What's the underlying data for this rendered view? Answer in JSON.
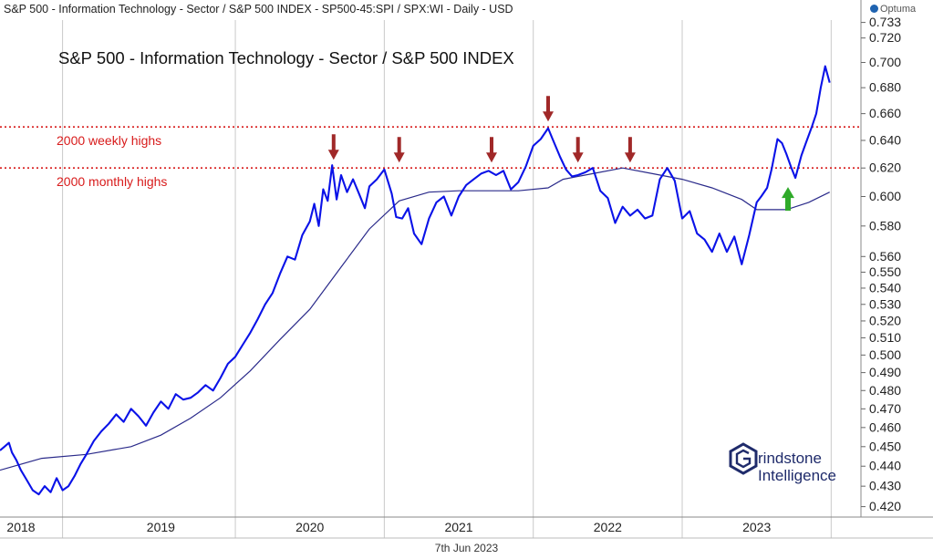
{
  "header": {
    "title": "S&P 500 - Information Technology - Sector / S&P 500 INDEX - SP500-45:SPI / SPX:WI - Daily - USD",
    "brand": "Optuma"
  },
  "footer": {
    "date": "7th Jun 2023"
  },
  "logo": {
    "line1": "rindstone",
    "line2": "Intelligence"
  },
  "colors": {
    "price": "#0a12e8",
    "ma": "#2a2a8a",
    "ref": "#d81b1b",
    "arrow_down": "#a02828",
    "arrow_up": "#2faa2a",
    "grid": "#c9c9c9"
  },
  "chart_data": {
    "type": "line",
    "title": "S&P 500 - Information Technology - Sector / S&P 500 INDEX",
    "xlabel": "",
    "ylabel": "",
    "scale": "log",
    "xlim": [
      2017.92,
      2023.7
    ],
    "ylim": [
      0.415,
      0.735
    ],
    "x_ticks": [
      {
        "x": 2018.15,
        "label": "2018"
      },
      {
        "x": 2019.0,
        "label": "2019"
      },
      {
        "x": 2020.0,
        "label": "2020"
      },
      {
        "x": 2021.0,
        "label": "2021"
      },
      {
        "x": 2022.0,
        "label": "2022"
      },
      {
        "x": 2023.0,
        "label": "2023"
      }
    ],
    "x_separators": [
      2018.34,
      2019.5,
      2020.5,
      2021.5,
      2022.5,
      2023.5
    ],
    "y_ticks": [
      0.42,
      0.43,
      0.44,
      0.45,
      0.46,
      0.47,
      0.48,
      0.49,
      0.5,
      0.51,
      0.52,
      0.53,
      0.54,
      0.55,
      0.56,
      0.58,
      0.6,
      0.62,
      0.64,
      0.66,
      0.68,
      0.7,
      0.72,
      0.733
    ],
    "y_tick_labels": [
      "0.420",
      "0.430",
      "0.440",
      "0.450",
      "0.460",
      "0.470",
      "0.480",
      "0.490",
      "0.500",
      "0.510",
      "0.520",
      "0.530",
      "0.540",
      "0.550",
      "0.560",
      "0.580",
      "0.600",
      "0.620",
      "0.640",
      "0.660",
      "0.680",
      "0.700",
      "0.720",
      "0.733"
    ],
    "series": [
      {
        "name": "S&P 500 Information Technology / S&P 500",
        "x": [
          2017.92,
          2017.95,
          2017.98,
          2018.0,
          2018.03,
          2018.06,
          2018.1,
          2018.14,
          2018.18,
          2018.22,
          2018.26,
          2018.3,
          2018.34,
          2018.38,
          2018.42,
          2018.46,
          2018.5,
          2018.55,
          2018.6,
          2018.65,
          2018.7,
          2018.75,
          2018.8,
          2018.85,
          2018.9,
          2018.95,
          2019.0,
          2019.05,
          2019.1,
          2019.15,
          2019.2,
          2019.25,
          2019.3,
          2019.35,
          2019.4,
          2019.45,
          2019.5,
          2019.55,
          2019.6,
          2019.65,
          2019.7,
          2019.75,
          2019.8,
          2019.85,
          2019.9,
          2019.95,
          2020.0,
          2020.03,
          2020.06,
          2020.09,
          2020.12,
          2020.15,
          2020.18,
          2020.21,
          2020.25,
          2020.29,
          2020.33,
          2020.37,
          2020.4,
          2020.45,
          2020.5,
          2020.55,
          2020.58,
          2020.62,
          2020.66,
          2020.7,
          2020.75,
          2020.8,
          2020.85,
          2020.9,
          2020.95,
          2021.0,
          2021.05,
          2021.1,
          2021.15,
          2021.2,
          2021.25,
          2021.3,
          2021.35,
          2021.4,
          2021.45,
          2021.5,
          2021.55,
          2021.6,
          2021.63,
          2021.68,
          2021.72,
          2021.76,
          2021.8,
          2021.85,
          2021.9,
          2021.95,
          2022.0,
          2022.05,
          2022.1,
          2022.15,
          2022.2,
          2022.25,
          2022.3,
          2022.35,
          2022.4,
          2022.45,
          2022.5,
          2022.55,
          2022.6,
          2022.65,
          2022.7,
          2022.75,
          2022.8,
          2022.85,
          2022.9,
          2022.95,
          2023.0,
          2023.03,
          2023.07,
          2023.1,
          2023.14,
          2023.17,
          2023.2,
          2023.23,
          2023.26,
          2023.3,
          2023.33,
          2023.37,
          2023.4,
          2023.43,
          2023.46,
          2023.49
        ],
        "values": [
          0.448,
          0.45,
          0.452,
          0.447,
          0.443,
          0.438,
          0.433,
          0.428,
          0.426,
          0.43,
          0.427,
          0.434,
          0.428,
          0.43,
          0.435,
          0.441,
          0.446,
          0.453,
          0.458,
          0.462,
          0.467,
          0.463,
          0.47,
          0.466,
          0.461,
          0.468,
          0.474,
          0.47,
          0.478,
          0.475,
          0.476,
          0.479,
          0.483,
          0.48,
          0.487,
          0.495,
          0.499,
          0.506,
          0.513,
          0.521,
          0.53,
          0.537,
          0.549,
          0.56,
          0.558,
          0.574,
          0.583,
          0.595,
          0.58,
          0.605,
          0.597,
          0.622,
          0.598,
          0.615,
          0.603,
          0.612,
          0.602,
          0.592,
          0.607,
          0.612,
          0.619,
          0.602,
          0.586,
          0.585,
          0.592,
          0.575,
          0.568,
          0.585,
          0.596,
          0.6,
          0.587,
          0.6,
          0.608,
          0.612,
          0.616,
          0.618,
          0.615,
          0.618,
          0.605,
          0.61,
          0.621,
          0.636,
          0.641,
          0.649,
          0.641,
          0.628,
          0.619,
          0.614,
          0.615,
          0.617,
          0.62,
          0.604,
          0.599,
          0.582,
          0.593,
          0.587,
          0.591,
          0.585,
          0.587,
          0.612,
          0.62,
          0.611,
          0.585,
          0.59,
          0.575,
          0.571,
          0.563,
          0.575,
          0.563,
          0.573,
          0.555,
          0.574,
          0.596,
          0.6,
          0.606,
          0.619,
          0.641,
          0.638,
          0.63,
          0.621,
          0.613,
          0.629,
          0.638,
          0.65,
          0.66,
          0.68,
          0.697,
          0.684
        ]
      },
      {
        "name": "Moving average",
        "x": [
          2017.92,
          2018.2,
          2018.5,
          2018.8,
          2019.0,
          2019.2,
          2019.4,
          2019.6,
          2019.8,
          2020.0,
          2020.2,
          2020.4,
          2020.6,
          2020.8,
          2021.0,
          2021.2,
          2021.4,
          2021.6,
          2021.7,
          2021.9,
          2022.1,
          2022.3,
          2022.5,
          2022.7,
          2022.9,
          2023.0,
          2023.2,
          2023.35,
          2023.49
        ],
        "values": [
          0.438,
          0.444,
          0.446,
          0.45,
          0.456,
          0.465,
          0.476,
          0.491,
          0.509,
          0.527,
          0.552,
          0.578,
          0.597,
          0.603,
          0.604,
          0.604,
          0.604,
          0.606,
          0.612,
          0.616,
          0.62,
          0.616,
          0.612,
          0.606,
          0.598,
          0.591,
          0.591,
          0.596,
          0.603
        ]
      }
    ],
    "reference_lines": [
      {
        "y": 0.65,
        "label": "2000 weekly highs"
      },
      {
        "y": 0.62,
        "label": "2000 monthly highs"
      }
    ],
    "annotations": [
      {
        "type": "arrow_down",
        "x": 2020.16,
        "y": 0.622
      },
      {
        "type": "arrow_down",
        "x": 2020.6,
        "y": 0.62
      },
      {
        "type": "arrow_down",
        "x": 2021.22,
        "y": 0.62
      },
      {
        "type": "arrow_down",
        "x": 2021.6,
        "y": 0.65
      },
      {
        "type": "arrow_down",
        "x": 2021.8,
        "y": 0.62
      },
      {
        "type": "arrow_down",
        "x": 2022.15,
        "y": 0.62
      },
      {
        "type": "arrow_up",
        "x": 2023.21,
        "y": 0.613
      }
    ]
  }
}
